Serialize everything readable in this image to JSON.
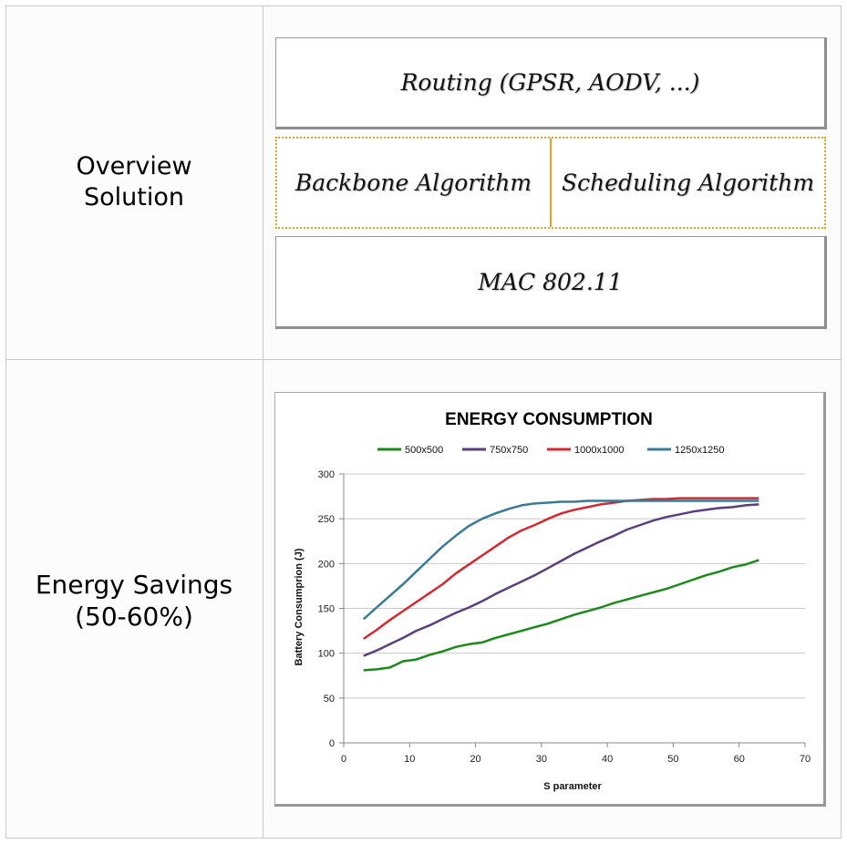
{
  "rows": [
    {
      "label_lines": [
        "Overview",
        "Solution"
      ]
    },
    {
      "label_lines": [
        "Energy Savings",
        "(50-60%)"
      ]
    }
  ],
  "diagram": {
    "top_layer": "Routing (GPSR, AODV, ...)",
    "middle_left": "Backbone Algorithm",
    "middle_right": "Scheduling Algorithm",
    "bottom_layer": "MAC 802.11",
    "middle_border_color": "#e8a020"
  },
  "chart_data": {
    "type": "line",
    "title": "ENERGY CONSUMPTION",
    "xlabel": "S parameter",
    "ylabel": "Battery Consumprion (J)",
    "xlim": [
      0,
      70
    ],
    "ylim": [
      0,
      300
    ],
    "xticks": [
      0,
      10,
      20,
      30,
      40,
      50,
      60,
      70
    ],
    "yticks": [
      0,
      50,
      100,
      150,
      200,
      250,
      300
    ],
    "grid": true,
    "legend_position": "top",
    "series": [
      {
        "name": "500x500",
        "color": "#1a8a1a",
        "x": [
          3,
          5,
          7,
          9,
          11,
          13,
          15,
          17,
          19,
          21,
          23,
          25,
          27,
          29,
          31,
          33,
          35,
          37,
          39,
          41,
          43,
          45,
          47,
          49,
          51,
          53,
          55,
          57,
          59,
          61,
          63
        ],
        "y": [
          81,
          82,
          84,
          91,
          93,
          98,
          102,
          107,
          110,
          112,
          117,
          121,
          125,
          129,
          133,
          138,
          143,
          147,
          151,
          156,
          160,
          164,
          168,
          172,
          177,
          182,
          187,
          191,
          196,
          199,
          204
        ]
      },
      {
        "name": "750x750",
        "color": "#5b3f7d",
        "x": [
          3,
          5,
          7,
          9,
          11,
          13,
          15,
          17,
          19,
          21,
          23,
          25,
          27,
          29,
          31,
          33,
          35,
          37,
          39,
          41,
          43,
          45,
          47,
          49,
          51,
          53,
          55,
          57,
          59,
          61,
          63
        ],
        "y": [
          97,
          103,
          110,
          117,
          125,
          131,
          138,
          145,
          151,
          158,
          166,
          173,
          180,
          187,
          195,
          203,
          211,
          218,
          225,
          231,
          238,
          243,
          248,
          252,
          255,
          258,
          260,
          262,
          263,
          265,
          266
        ]
      },
      {
        "name": "1000x1000",
        "color": "#d8282f",
        "x": [
          3,
          5,
          7,
          9,
          11,
          13,
          15,
          17,
          19,
          21,
          23,
          25,
          27,
          29,
          31,
          33,
          35,
          37,
          39,
          41,
          43,
          45,
          47,
          49,
          51,
          53,
          55,
          57,
          59,
          61,
          63
        ],
        "y": [
          116,
          126,
          137,
          147,
          157,
          167,
          177,
          189,
          199,
          209,
          219,
          229,
          237,
          243,
          250,
          256,
          260,
          263,
          266,
          268,
          270,
          271,
          272,
          272,
          273,
          273,
          273,
          273,
          273,
          273,
          273
        ]
      },
      {
        "name": "1250x1250",
        "color": "#3a7a96",
        "x": [
          3,
          5,
          7,
          9,
          11,
          13,
          15,
          17,
          19,
          21,
          23,
          25,
          27,
          29,
          31,
          33,
          35,
          37,
          39,
          41,
          43,
          45,
          47,
          49,
          51,
          53,
          55,
          57,
          59,
          61,
          63
        ],
        "y": [
          138,
          151,
          164,
          177,
          191,
          205,
          219,
          231,
          242,
          250,
          256,
          261,
          265,
          267,
          268,
          269,
          269,
          270,
          270,
          270,
          270,
          270,
          270,
          270,
          270,
          270,
          270,
          270,
          270,
          270,
          270
        ]
      }
    ]
  }
}
